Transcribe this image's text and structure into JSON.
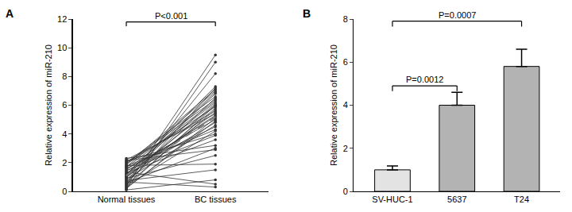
{
  "chart_data": [
    {
      "panel": "A",
      "type": "line",
      "y_label": "Relative expression of miR-210",
      "categories": [
        "Normal tissues",
        "BC tissues"
      ],
      "color": "#333333",
      "marker": "circle",
      "ylim": [
        0,
        12
      ],
      "yticks": [
        0,
        2,
        4,
        6,
        8,
        10,
        12
      ],
      "grid": false,
      "annotations": [
        {
          "text": "P<0.001",
          "from": "Normal tissues",
          "to": "BC tissues",
          "y": 11.8
        }
      ],
      "series": [
        {
          "values": [
            0.2,
            5.1
          ]
        },
        {
          "values": [
            0.3,
            6.0
          ]
        },
        {
          "values": [
            0.4,
            4.2
          ]
        },
        {
          "values": [
            0.5,
            7.2
          ]
        },
        {
          "values": [
            0.6,
            3.0
          ]
        },
        {
          "values": [
            0.7,
            5.8
          ]
        },
        {
          "values": [
            0.8,
            6.5
          ]
        },
        {
          "values": [
            0.9,
            2.5
          ]
        },
        {
          "values": [
            1.0,
            5.5
          ]
        },
        {
          "values": [
            1.1,
            4.8
          ]
        },
        {
          "values": [
            1.2,
            6.9
          ]
        },
        {
          "values": [
            1.3,
            3.6
          ]
        },
        {
          "values": [
            1.4,
            5.2
          ]
        },
        {
          "values": [
            1.5,
            6.2
          ]
        },
        {
          "values": [
            1.6,
            4.5
          ]
        },
        {
          "values": [
            1.7,
            7.0
          ]
        },
        {
          "values": [
            1.8,
            1.9
          ]
        },
        {
          "values": [
            1.9,
            5.9
          ]
        },
        {
          "values": [
            2.0,
            6.6
          ]
        },
        {
          "values": [
            2.1,
            4.0
          ]
        },
        {
          "values": [
            2.2,
            5.4
          ]
        },
        {
          "values": [
            2.3,
            3.2
          ]
        },
        {
          "values": [
            0.1,
            0.8
          ]
        },
        {
          "values": [
            0.15,
            9.0
          ]
        },
        {
          "values": [
            0.35,
            9.5
          ]
        },
        {
          "values": [
            0.55,
            8.2
          ]
        },
        {
          "values": [
            0.75,
            1.5
          ]
        },
        {
          "values": [
            0.95,
            6.1
          ]
        },
        {
          "values": [
            1.15,
            7.3
          ]
        },
        {
          "values": [
            1.35,
            0.5
          ]
        },
        {
          "values": [
            1.55,
            5.0
          ]
        },
        {
          "values": [
            1.75,
            4.3
          ]
        },
        {
          "values": [
            1.95,
            6.4
          ]
        },
        {
          "values": [
            2.15,
            2.9
          ]
        },
        {
          "values": [
            0.45,
            5.7
          ]
        },
        {
          "values": [
            0.65,
            0.3
          ]
        },
        {
          "values": [
            0.85,
            4.6
          ]
        },
        {
          "values": [
            1.05,
            6.8
          ]
        },
        {
          "values": [
            1.25,
            5.3
          ]
        },
        {
          "values": [
            1.45,
            3.9
          ]
        },
        {
          "values": [
            1.65,
            6.3
          ]
        },
        {
          "values": [
            1.85,
            7.1
          ]
        },
        {
          "values": [
            2.05,
            5.6
          ]
        },
        {
          "values": [
            0.25,
            4.9
          ]
        },
        {
          "values": [
            1.0,
            6.0
          ]
        },
        {
          "values": [
            1.1,
            5.2
          ],
          "line_style": "dashed",
          "color": "#777777"
        }
      ]
    },
    {
      "panel": "B",
      "type": "bar",
      "y_label": "Relative expression of miR-210",
      "categories": [
        "SV-HUC-1",
        "5637",
        "T24"
      ],
      "values": [
        1.0,
        4.0,
        5.8
      ],
      "errors": [
        0.18,
        0.6,
        0.8
      ],
      "colors": [
        "#e3e3e3",
        "#b3b3b3",
        "#b3b3b3"
      ],
      "ylim": [
        0,
        8
      ],
      "yticks": [
        0,
        2,
        4,
        6,
        8
      ],
      "grid": false,
      "annotations": [
        {
          "text": "P=0.0012",
          "from": "SV-HUC-1",
          "to": "5637",
          "y": 4.9
        },
        {
          "text": "P=0.0007",
          "from": "SV-HUC-1",
          "to": "T24",
          "y": 7.9
        }
      ]
    }
  ]
}
